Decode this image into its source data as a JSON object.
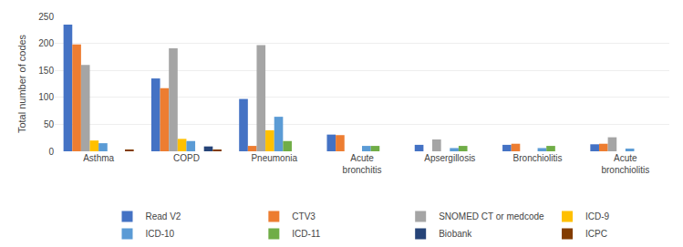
{
  "chart_data": {
    "type": "bar",
    "ylabel": "Total number of codes",
    "categories": [
      "Asthma",
      "COPD",
      "Pneumonia",
      "Acute\nbronchitis",
      "Apsergillosis",
      "Bronchiolitis",
      "Acute\nbronchiolitis"
    ],
    "series": [
      {
        "name": "Read V2",
        "color": "#4472C4",
        "values": [
          235,
          135,
          97,
          31,
          12,
          12,
          13
        ]
      },
      {
        "name": "CTV3",
        "color": "#ED7D31",
        "values": [
          198,
          117,
          10,
          30,
          0,
          14,
          14
        ]
      },
      {
        "name": "SNOMED CT or medcode",
        "color": "#A5A5A5",
        "values": [
          160,
          191,
          197,
          0,
          22,
          0,
          26
        ]
      },
      {
        "name": "ICD-9",
        "color": "#FFC000",
        "values": [
          20,
          23,
          39,
          0,
          0,
          0,
          0
        ]
      },
      {
        "name": "ICD-10",
        "color": "#5B9BD5",
        "values": [
          15,
          19,
          64,
          10,
          6,
          6,
          5
        ]
      },
      {
        "name": "ICD-11",
        "color": "#70AD47",
        "values": [
          0,
          0,
          19,
          10,
          10,
          10,
          0
        ]
      },
      {
        "name": "Biobank",
        "color": "#264478",
        "values": [
          0,
          9,
          0,
          0,
          0,
          0,
          0
        ]
      },
      {
        "name": "ICPC",
        "color": "#833C00",
        "values": [
          2,
          3,
          0,
          0,
          0,
          0,
          0
        ]
      }
    ],
    "ylim": [
      0,
      250
    ],
    "yticks": [
      0,
      50,
      100,
      150,
      200,
      250
    ],
    "grid": true,
    "legend": "bottom"
  }
}
